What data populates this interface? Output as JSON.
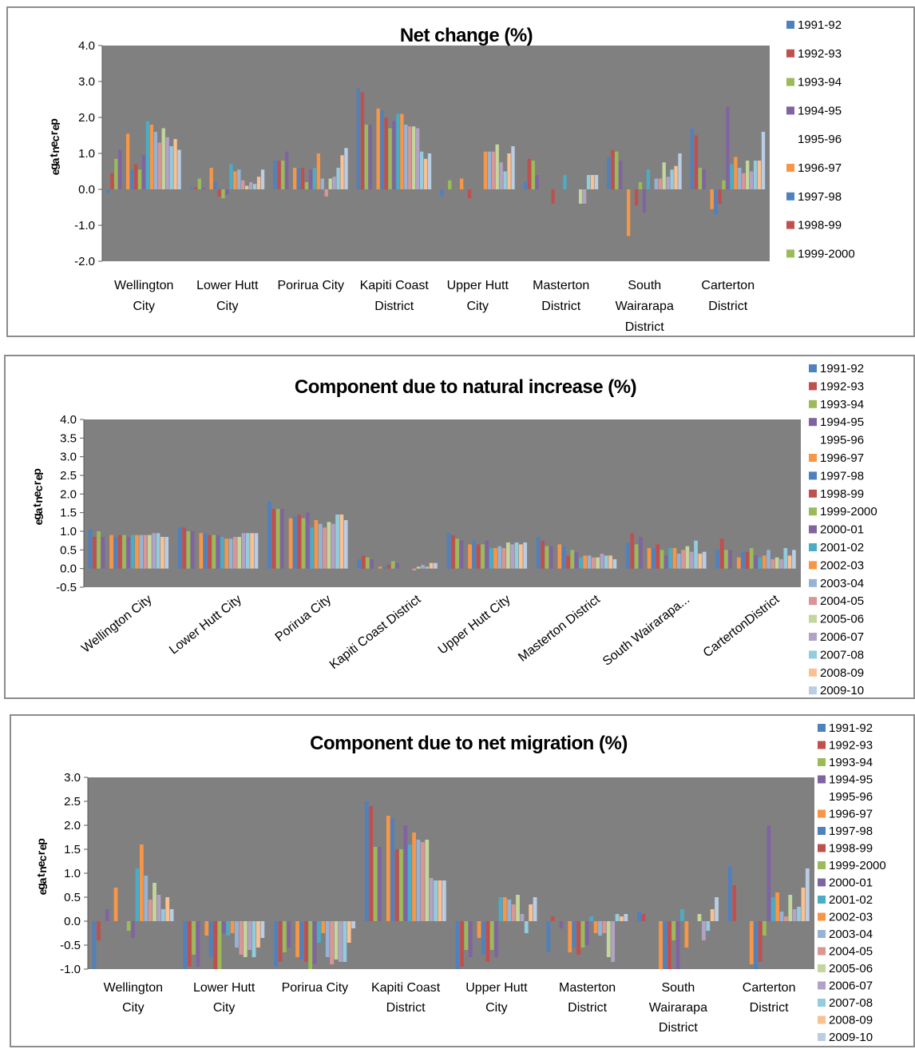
{
  "legend_labels": [
    "1991-92",
    "1992-93",
    "1993-94",
    "1994-95",
    "1995-96",
    "1996-97",
    "1997-98",
    "1998-99",
    "1999-2000",
    "2000-01",
    "2001-02",
    "2002-03",
    "2003-04",
    "2004-05",
    "2005-06",
    "2006-07",
    "2007-08",
    "2008-09",
    "2009-10"
  ],
  "colors": [
    "#4f81bd",
    "#c0504d",
    "#9bbb59",
    "#8064a2",
    "#ffffff",
    "#f79646",
    "#4f81bd",
    "#c0504d",
    "#9bbb59",
    "#8064a2",
    "#4bacc6",
    "#f79646",
    "#95b3d7",
    "#d99694",
    "#c3d69b",
    "#b2a2c7",
    "#93cddd",
    "#fac090",
    "#b9cde5"
  ],
  "chart_data": [
    {
      "type": "bar",
      "title": "Net change (%)",
      "ylabel": "percentage",
      "ylim": [
        -2.0,
        4.0
      ],
      "yticks": [
        "4.0",
        "3.0",
        "2.0",
        "1.0",
        "0.0",
        "-1.0",
        "-2.0"
      ],
      "legend_visible": 9,
      "categories": [
        [
          "Wellington",
          "City"
        ],
        [
          "Lower Hutt",
          "City"
        ],
        [
          "Porirua City"
        ],
        [
          "Kapiti Coast",
          "District"
        ],
        [
          "Upper Hutt",
          "City"
        ],
        [
          "Masterton",
          "District"
        ],
        [
          "South",
          "Wairarapa",
          "District"
        ],
        [
          "Carterton",
          "District"
        ]
      ],
      "values": [
        [
          -0.1,
          0.45,
          0.85,
          1.1,
          0.0,
          1.55,
          0.55,
          0.7,
          0.55,
          0.95,
          1.9,
          1.8,
          1.6,
          1.3,
          1.7,
          1.45,
          1.2,
          1.4,
          1.1
        ],
        [
          0.05,
          0.05,
          0.3,
          0.05,
          0.0,
          0.6,
          0.2,
          -0.2,
          -0.25,
          -0.15,
          0.7,
          0.5,
          0.55,
          0.25,
          0.1,
          0.2,
          0.15,
          0.35,
          0.55
        ],
        [
          0.8,
          0.8,
          0.8,
          1.05,
          0.0,
          0.6,
          0.6,
          0.6,
          0.2,
          0.55,
          0.6,
          1.0,
          0.3,
          -0.2,
          0.3,
          0.35,
          0.6,
          0.95,
          1.15
        ],
        [
          2.8,
          2.7,
          1.8,
          1.8,
          0.0,
          2.25,
          2.2,
          2.0,
          1.7,
          1.9,
          2.1,
          2.1,
          1.8,
          1.75,
          1.75,
          1.7,
          1.05,
          0.85,
          1.0
        ],
        [
          -0.2,
          0.0,
          0.25,
          0.0,
          0.0,
          0.3,
          0.0,
          -0.25,
          0.0,
          0.0,
          0.0,
          1.05,
          1.05,
          1.05,
          1.25,
          0.75,
          0.5,
          1.0,
          1.2
        ],
        [
          0.2,
          0.85,
          0.8,
          0.4,
          0.0,
          0.0,
          0.0,
          -0.4,
          0.0,
          0.0,
          0.4,
          0.0,
          0.0,
          0.0,
          -0.4,
          -0.4,
          0.4,
          0.4,
          0.4
        ],
        [
          0.9,
          1.1,
          1.05,
          0.8,
          0.0,
          -1.3,
          0.0,
          -0.45,
          0.2,
          -0.65,
          0.55,
          0.0,
          0.3,
          0.3,
          0.75,
          0.35,
          0.55,
          0.65,
          1.0
        ],
        [
          1.7,
          1.5,
          0.6,
          0.55,
          0.0,
          -0.55,
          -0.7,
          -0.4,
          0.25,
          2.3,
          0.7,
          0.9,
          0.6,
          0.45,
          0.8,
          0.5,
          0.8,
          0.8,
          1.6
        ]
      ]
    },
    {
      "type": "bar",
      "title": "Component due to natural increase (%)",
      "ylabel": "percentage",
      "ylim": [
        -0.5,
        4.0
      ],
      "yticks": [
        "4.0",
        "3.5",
        "3.0",
        "2.5",
        "2.0",
        "1.5",
        "1.0",
        "0.5",
        "0.0",
        "-0.5"
      ],
      "legend_visible": 19,
      "categories": [
        [
          "Wellington City"
        ],
        [
          "Lower Hutt City"
        ],
        [
          "Porirua City"
        ],
        [
          "Kapiti Coast District"
        ],
        [
          "Upper Hutt City"
        ],
        [
          "Masterton District"
        ],
        [
          "South Wairarapa..."
        ],
        [
          "CartertonDistrict"
        ]
      ],
      "values": [
        [
          1.05,
          0.85,
          1.0,
          0.85,
          0.0,
          0.9,
          0.85,
          0.9,
          0.9,
          0.85,
          0.9,
          0.9,
          0.9,
          0.9,
          0.9,
          0.95,
          0.95,
          0.85,
          0.85
        ],
        [
          1.1,
          1.1,
          1.0,
          1.0,
          0.0,
          0.95,
          0.95,
          0.9,
          0.9,
          0.9,
          0.85,
          0.8,
          0.8,
          0.85,
          0.85,
          0.95,
          0.95,
          0.95,
          0.95
        ],
        [
          1.8,
          1.6,
          1.6,
          1.6,
          0.0,
          1.35,
          1.4,
          1.45,
          1.35,
          1.5,
          1.1,
          1.3,
          1.2,
          1.1,
          1.25,
          1.2,
          1.45,
          1.45,
          1.3
        ],
        [
          0.25,
          0.35,
          0.3,
          0.25,
          0.0,
          0.05,
          0.05,
          0.1,
          0.2,
          0.15,
          0.0,
          0.0,
          0.0,
          -0.05,
          0.05,
          0.1,
          0.05,
          0.15,
          0.15
        ],
        [
          0.95,
          0.9,
          0.8,
          0.75,
          0.0,
          0.65,
          0.75,
          0.65,
          0.65,
          0.75,
          0.55,
          0.55,
          0.6,
          0.55,
          0.7,
          0.65,
          0.7,
          0.65,
          0.7
        ],
        [
          0.85,
          0.75,
          0.6,
          0.6,
          0.0,
          0.65,
          0.6,
          0.35,
          0.5,
          0.45,
          0.3,
          0.35,
          0.35,
          0.3,
          0.3,
          0.4,
          0.35,
          0.35,
          0.25
        ],
        [
          0.7,
          0.95,
          0.65,
          0.85,
          0.0,
          0.55,
          0.55,
          0.65,
          0.5,
          0.35,
          0.55,
          0.55,
          0.4,
          0.5,
          0.6,
          0.45,
          0.75,
          0.4,
          0.45
        ],
        [
          0.5,
          0.8,
          0.5,
          0.5,
          0.0,
          0.3,
          0.45,
          0.45,
          0.55,
          0.35,
          0.3,
          0.35,
          0.5,
          0.25,
          0.3,
          0.25,
          0.55,
          0.35,
          0.5
        ]
      ]
    },
    {
      "type": "bar",
      "title": "Component due to net migration (%)",
      "ylabel": "percentage",
      "ylim": [
        -1.0,
        3.0
      ],
      "yticks": [
        "3.0",
        "2.5",
        "2.0",
        "1.5",
        "1.0",
        "0.5",
        "0.0",
        "-0.5",
        "-1.0"
      ],
      "legend_visible": 19,
      "categories": [
        [
          "Wellington",
          "City"
        ],
        [
          "Lower Hutt",
          "City"
        ],
        [
          "Porirua City"
        ],
        [
          "Kapiti Coast",
          "District"
        ],
        [
          "Upper Hutt",
          "City"
        ],
        [
          "Masterton",
          "District"
        ],
        [
          "South",
          "Wairarapa",
          "District"
        ],
        [
          "Carterton",
          "District"
        ]
      ],
      "values": [
        [
          -1.0,
          -0.4,
          0.0,
          0.25,
          0.0,
          0.7,
          0.0,
          0.0,
          -0.2,
          -0.35,
          1.1,
          1.6,
          0.95,
          0.45,
          0.8,
          0.55,
          0.25,
          0.5,
          0.25
        ],
        [
          -1.0,
          -0.95,
          -0.7,
          -0.95,
          0.0,
          -0.3,
          -0.75,
          -1.0,
          -1.0,
          -0.25,
          -0.3,
          -0.25,
          -0.55,
          -0.7,
          -0.75,
          -0.6,
          -0.75,
          -0.55,
          -0.35
        ],
        [
          -0.95,
          -0.85,
          -0.65,
          -0.55,
          0.0,
          -0.75,
          -0.8,
          -0.85,
          -1.0,
          -0.9,
          -0.45,
          -0.25,
          -0.75,
          -0.9,
          -0.8,
          -0.85,
          -0.85,
          -0.45,
          -0.15
        ],
        [
          2.5,
          2.4,
          1.55,
          1.55,
          0.0,
          2.2,
          2.15,
          1.5,
          1.5,
          2.0,
          1.6,
          1.85,
          1.7,
          1.65,
          1.7,
          0.9,
          0.85,
          0.85,
          0.85
        ],
        [
          -1.0,
          -0.95,
          -0.6,
          -0.75,
          0.0,
          -0.35,
          -0.7,
          -0.85,
          -0.6,
          -0.75,
          0.5,
          0.5,
          0.45,
          0.35,
          0.55,
          0.15,
          -0.25,
          0.35,
          0.5
        ],
        [
          -0.65,
          0.1,
          0.0,
          -0.15,
          0.0,
          -0.65,
          -0.55,
          -0.7,
          -0.55,
          -0.5,
          0.1,
          -0.25,
          -0.3,
          -0.25,
          -0.75,
          -0.85,
          0.15,
          0.1,
          0.15
        ],
        [
          0.2,
          0.15,
          0.0,
          0.0,
          0.0,
          -1.0,
          -1.0,
          -1.0,
          -0.4,
          -1.0,
          0.25,
          -0.55,
          0.0,
          0.0,
          0.15,
          -0.4,
          -0.2,
          0.25,
          0.5
        ],
        [
          1.15,
          0.75,
          0.0,
          0.0,
          0.0,
          -0.9,
          -1.0,
          -0.85,
          -0.3,
          2.0,
          0.5,
          0.6,
          0.2,
          0.1,
          0.55,
          0.25,
          0.3,
          0.7,
          1.1
        ]
      ]
    }
  ]
}
